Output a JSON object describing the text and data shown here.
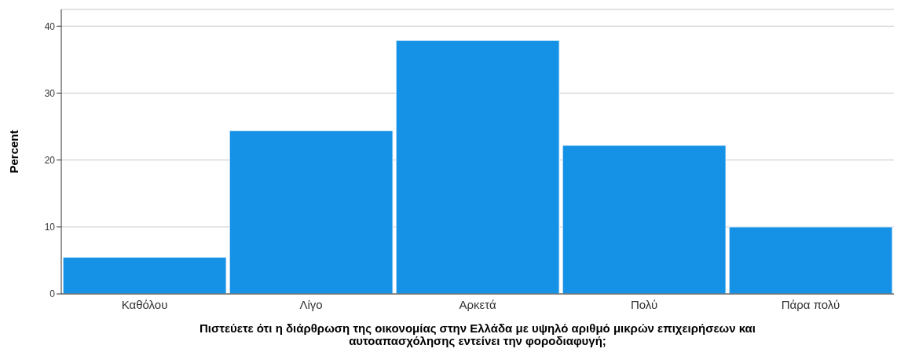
{
  "chart_data": {
    "type": "bar",
    "xlabel": "Πιστεύετε ότι η διάρθρωση της οικονομίας στην Ελλάδα με υψηλό αριθμό μικρών επιχειρήσεων και αυτοαπασχόλησης εντείνει την φοροδιαφυγή;",
    "ylabel": "Percent",
    "categories": [
      "Καθόλου",
      "Λίγο",
      "Αρκετά",
      "Πολύ",
      "Πάρα πολύ"
    ],
    "values": [
      5.5,
      24.4,
      37.9,
      22.2,
      10.0
    ],
    "color": "#1591e6",
    "ylim": [
      0,
      42.5
    ],
    "yticks": [
      0,
      10,
      20,
      30,
      40
    ],
    "grid": "y"
  }
}
